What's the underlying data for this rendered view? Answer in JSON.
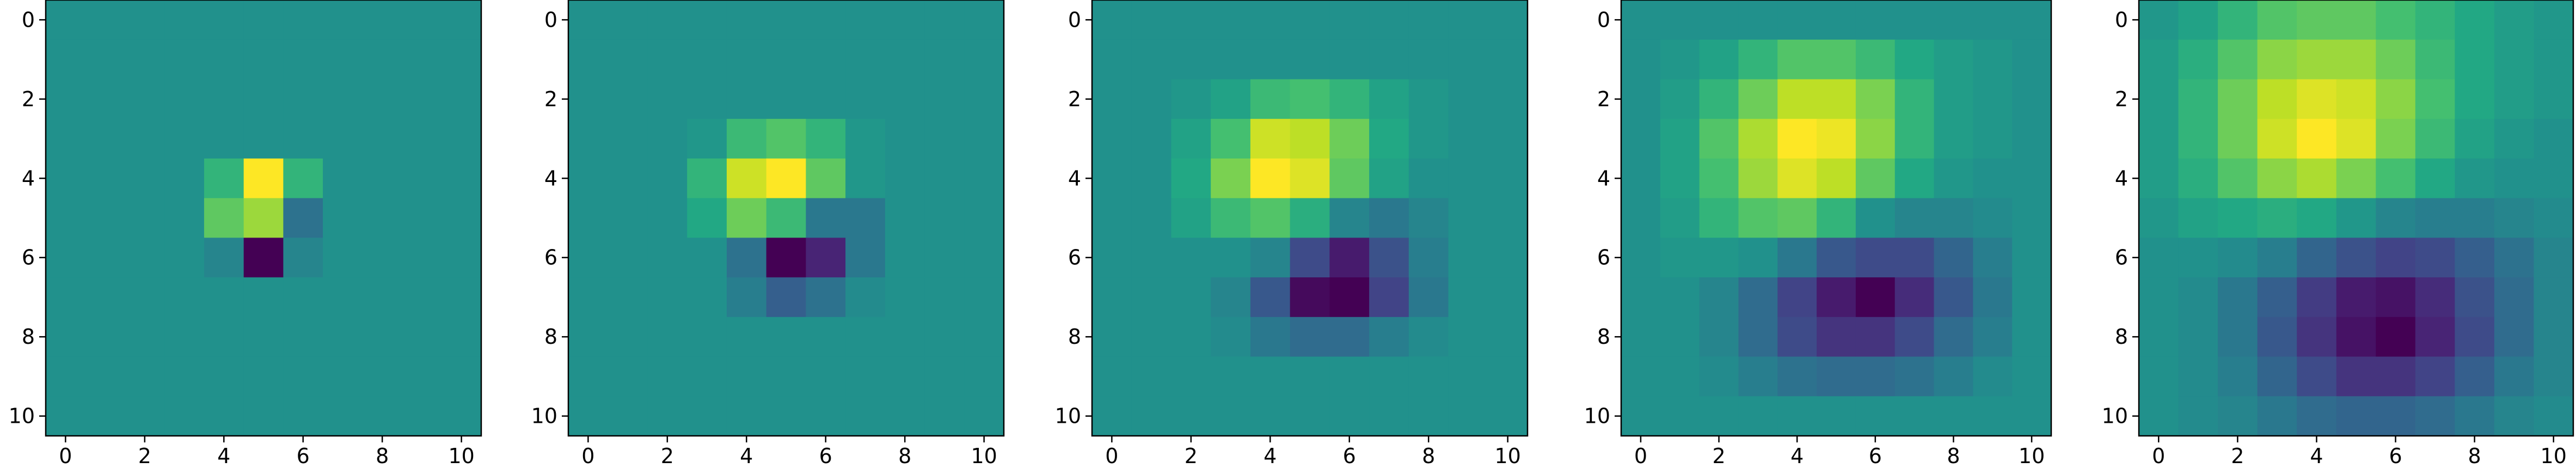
{
  "chart_data": [
    {
      "type": "heatmap",
      "colormap": "viridis",
      "xticks": [
        "0",
        "2",
        "4",
        "6",
        "8",
        "10"
      ],
      "yticks": [
        "0",
        "2",
        "4",
        "6",
        "8",
        "10"
      ],
      "xlim": [
        -0.5,
        10.5
      ],
      "ylim": [
        10.5,
        -0.5
      ],
      "grid": false,
      "z": [
        [
          0,
          0,
          0,
          0,
          0,
          0,
          0,
          0,
          0,
          0,
          0
        ],
        [
          0,
          0,
          0,
          0,
          0,
          0,
          0,
          0,
          0,
          0,
          0
        ],
        [
          0,
          0,
          0,
          0,
          0,
          0,
          0,
          0,
          0,
          0,
          0
        ],
        [
          0,
          0,
          0,
          0,
          0,
          0,
          0,
          0,
          0,
          0,
          0
        ],
        [
          0,
          0,
          0,
          0,
          0.3,
          1,
          0.3,
          0,
          0,
          0,
          0
        ],
        [
          0,
          0,
          0,
          0,
          0.5,
          0.7,
          -0.25,
          0,
          0,
          0,
          0
        ],
        [
          0,
          0,
          0,
          0,
          -0.1,
          -1,
          -0.1,
          0,
          0,
          0,
          0
        ],
        [
          0,
          0,
          0,
          0,
          0,
          0,
          0,
          0,
          0,
          0,
          0
        ],
        [
          0,
          0,
          0,
          0,
          0,
          0,
          0,
          0,
          0,
          0,
          0
        ],
        [
          0,
          0,
          0,
          0,
          0,
          0,
          0,
          0,
          0,
          0,
          0
        ],
        [
          0,
          0,
          0,
          0,
          0,
          0,
          0,
          0,
          0,
          0,
          0
        ]
      ]
    },
    {
      "type": "heatmap",
      "colormap": "viridis",
      "xticks": [
        "0",
        "2",
        "4",
        "6",
        "8",
        "10"
      ],
      "yticks": [
        "0",
        "2",
        "4",
        "6",
        "8",
        "10"
      ],
      "xlim": [
        -0.5,
        10.5
      ],
      "ylim": [
        10.5,
        -0.5
      ],
      "grid": false,
      "z": [
        [
          0,
          0,
          0,
          0,
          0,
          0,
          0,
          0,
          0,
          0,
          0
        ],
        [
          0,
          0,
          0,
          0,
          0,
          0,
          0,
          0,
          0,
          0,
          0
        ],
        [
          0,
          0,
          0,
          0,
          0,
          0,
          0,
          0,
          0,
          0,
          0
        ],
        [
          0,
          0,
          0,
          0.05,
          0.35,
          0.45,
          0.3,
          0.05,
          0,
          0,
          0
        ],
        [
          0,
          0,
          0,
          0.3,
          0.85,
          1,
          0.5,
          0.05,
          0,
          0,
          0
        ],
        [
          0,
          0,
          0,
          0.2,
          0.55,
          0.35,
          -0.2,
          -0.2,
          0,
          0,
          0
        ],
        [
          0,
          0,
          0,
          0,
          -0.25,
          -1,
          -0.8,
          -0.2,
          0,
          0,
          0
        ],
        [
          0,
          0,
          0,
          0,
          -0.15,
          -0.4,
          -0.25,
          -0.05,
          0,
          0,
          0
        ],
        [
          0,
          0,
          0,
          0,
          0,
          0,
          0,
          0,
          0,
          0,
          0
        ],
        [
          0,
          0,
          0,
          0,
          0,
          0,
          0,
          0,
          0,
          0,
          0
        ],
        [
          0,
          0,
          0,
          0,
          0,
          0,
          0,
          0,
          0,
          0,
          0
        ]
      ]
    },
    {
      "type": "heatmap",
      "colormap": "viridis",
      "xticks": [
        "0",
        "2",
        "4",
        "6",
        "8",
        "10"
      ],
      "yticks": [
        "0",
        "2",
        "4",
        "6",
        "8",
        "10"
      ],
      "xlim": [
        -0.5,
        10.5
      ],
      "ylim": [
        10.5,
        -0.5
      ],
      "grid": false,
      "z": [
        [
          0,
          0,
          0,
          0,
          0,
          0,
          0,
          0,
          0,
          0,
          0
        ],
        [
          0,
          0,
          0,
          0,
          0,
          0,
          0,
          0,
          0,
          0,
          0
        ],
        [
          0,
          0,
          0.05,
          0.15,
          0.35,
          0.4,
          0.3,
          0.15,
          0.05,
          0,
          0
        ],
        [
          0,
          0,
          0.15,
          0.4,
          0.85,
          0.8,
          0.55,
          0.2,
          0.05,
          0,
          0
        ],
        [
          0,
          0,
          0.2,
          0.6,
          1,
          0.9,
          0.5,
          0.15,
          0,
          0,
          0
        ],
        [
          0,
          0,
          0.15,
          0.35,
          0.45,
          0.25,
          -0.1,
          -0.2,
          -0.1,
          0,
          0
        ],
        [
          0,
          0,
          0,
          0,
          -0.1,
          -0.55,
          -0.85,
          -0.5,
          -0.15,
          0,
          0
        ],
        [
          0,
          0,
          0,
          -0.1,
          -0.45,
          -0.95,
          -1,
          -0.6,
          -0.2,
          0,
          0
        ],
        [
          0,
          0,
          0,
          -0.05,
          -0.2,
          -0.3,
          -0.3,
          -0.15,
          -0.05,
          0,
          0
        ],
        [
          0,
          0,
          0,
          0,
          0,
          0,
          0,
          0,
          0,
          0,
          0
        ],
        [
          0,
          0,
          0,
          0,
          0,
          0,
          0,
          0,
          0,
          0,
          0
        ]
      ]
    },
    {
      "type": "heatmap",
      "colormap": "viridis",
      "xticks": [
        "0",
        "2",
        "4",
        "6",
        "8",
        "10"
      ],
      "yticks": [
        "0",
        "2",
        "4",
        "6",
        "8",
        "10"
      ],
      "xlim": [
        -0.5,
        10.5
      ],
      "ylim": [
        10.5,
        -0.5
      ],
      "grid": false,
      "z": [
        [
          0,
          0,
          0,
          0,
          0,
          0,
          0,
          0,
          0,
          0,
          0
        ],
        [
          0,
          0.05,
          0.15,
          0.3,
          0.45,
          0.45,
          0.35,
          0.2,
          0.1,
          0.05,
          0
        ],
        [
          0,
          0.1,
          0.3,
          0.55,
          0.8,
          0.8,
          0.6,
          0.3,
          0.1,
          0.05,
          0
        ],
        [
          0,
          0.15,
          0.45,
          0.75,
          1,
          0.95,
          0.65,
          0.3,
          0.1,
          0.05,
          0
        ],
        [
          0,
          0.15,
          0.4,
          0.7,
          0.9,
          0.8,
          0.5,
          0.2,
          0.05,
          0,
          0
        ],
        [
          0,
          0.1,
          0.3,
          0.45,
          0.5,
          0.3,
          0,
          -0.1,
          -0.1,
          -0.05,
          0
        ],
        [
          0,
          0.05,
          0.05,
          0,
          -0.2,
          -0.45,
          -0.55,
          -0.55,
          -0.35,
          -0.15,
          0
        ],
        [
          0,
          0,
          -0.1,
          -0.3,
          -0.6,
          -0.85,
          -1,
          -0.75,
          -0.45,
          -0.2,
          0
        ],
        [
          0,
          0,
          -0.1,
          -0.3,
          -0.55,
          -0.7,
          -0.7,
          -0.55,
          -0.3,
          -0.15,
          0
        ],
        [
          0,
          0,
          -0.05,
          -0.15,
          -0.25,
          -0.3,
          -0.3,
          -0.25,
          -0.15,
          -0.05,
          0
        ],
        [
          0,
          0,
          0,
          0,
          0,
          0,
          0,
          0,
          0,
          0,
          0
        ]
      ]
    },
    {
      "type": "heatmap",
      "colormap": "viridis",
      "xticks": [
        "0",
        "2",
        "4",
        "6",
        "8",
        "10"
      ],
      "yticks": [
        "0",
        "2",
        "4",
        "6",
        "8",
        "10"
      ],
      "xlim": [
        -0.5,
        10.5
      ],
      "ylim": [
        10.5,
        -0.5
      ],
      "grid": false,
      "z": [
        [
          0.05,
          0.15,
          0.3,
          0.45,
          0.5,
          0.5,
          0.4,
          0.3,
          0.2,
          0.1,
          0.05
        ],
        [
          0.1,
          0.25,
          0.45,
          0.65,
          0.7,
          0.7,
          0.55,
          0.35,
          0.2,
          0.1,
          0.05
        ],
        [
          0.1,
          0.3,
          0.55,
          0.8,
          0.9,
          0.85,
          0.65,
          0.4,
          0.2,
          0.1,
          0.05
        ],
        [
          0.1,
          0.3,
          0.55,
          0.85,
          1,
          0.9,
          0.6,
          0.35,
          0.15,
          0.05,
          0
        ],
        [
          0.1,
          0.25,
          0.45,
          0.65,
          0.75,
          0.6,
          0.4,
          0.2,
          0.05,
          0,
          0
        ],
        [
          0.05,
          0.15,
          0.2,
          0.25,
          0.2,
          0.05,
          -0.1,
          -0.15,
          -0.15,
          -0.1,
          -0.05
        ],
        [
          0,
          0,
          -0.05,
          -0.15,
          -0.35,
          -0.5,
          -0.6,
          -0.55,
          -0.4,
          -0.25,
          -0.1
        ],
        [
          0,
          -0.05,
          -0.2,
          -0.4,
          -0.65,
          -0.85,
          -0.9,
          -0.75,
          -0.5,
          -0.3,
          -0.1
        ],
        [
          0,
          -0.05,
          -0.2,
          -0.45,
          -0.7,
          -0.9,
          -1,
          -0.8,
          -0.55,
          -0.3,
          -0.1
        ],
        [
          0,
          -0.05,
          -0.15,
          -0.35,
          -0.55,
          -0.7,
          -0.7,
          -0.6,
          -0.4,
          -0.2,
          -0.1
        ],
        [
          0,
          -0.05,
          -0.1,
          -0.2,
          -0.3,
          -0.35,
          -0.35,
          -0.3,
          -0.2,
          -0.1,
          -0.05
        ]
      ]
    }
  ]
}
